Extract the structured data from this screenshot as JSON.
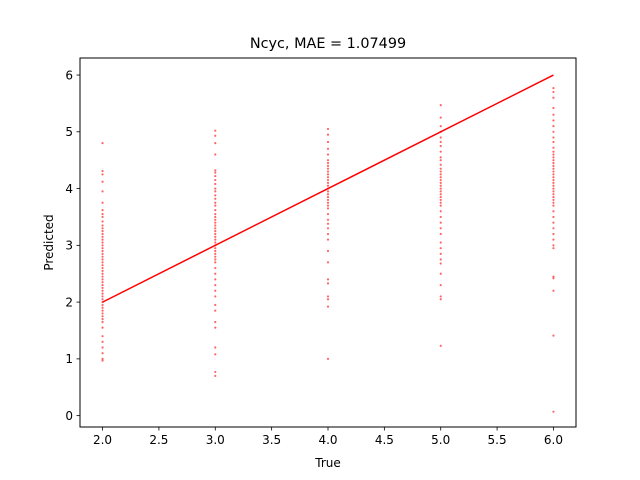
{
  "chart_data": {
    "type": "scatter",
    "title": "Ncyc, MAE = 1.07499",
    "xlabel": "True",
    "ylabel": "Predicted",
    "xlim": [
      1.8,
      6.2
    ],
    "ylim": [
      -0.2,
      6.3
    ],
    "xticks": [
      "2.0",
      "2.5",
      "3.0",
      "3.5",
      "4.0",
      "4.5",
      "5.0",
      "5.5",
      "6.0"
    ],
    "yticks": [
      "0",
      "1",
      "2",
      "3",
      "4",
      "5",
      "6"
    ],
    "grid": false,
    "point_color": "#ff0000",
    "line_color": "#ff0000",
    "reference_line": {
      "x": [
        2,
        6
      ],
      "y": [
        2,
        6
      ]
    },
    "series": [
      {
        "x": 2,
        "y": [
          4.8,
          4.31,
          4.25,
          4.12,
          3.95,
          3.75,
          3.62,
          3.55,
          3.5,
          3.42,
          3.35,
          3.3,
          3.25,
          3.2,
          3.15,
          3.1,
          3.05,
          3.0,
          2.95,
          2.9,
          2.85,
          2.8,
          2.75,
          2.7,
          2.65,
          2.6,
          2.55,
          2.5,
          2.45,
          2.4,
          2.35,
          2.3,
          2.25,
          2.2,
          2.15,
          2.1,
          2.05,
          2.0,
          1.95,
          1.9,
          1.85,
          1.8,
          1.75,
          1.7,
          1.65,
          1.55,
          1.4,
          1.3,
          1.2,
          1.1,
          1.0,
          0.97
        ]
      },
      {
        "x": 3,
        "y": [
          5.02,
          4.93,
          4.8,
          4.6,
          4.32,
          4.28,
          4.22,
          4.15,
          4.08,
          4.0,
          3.95,
          3.88,
          3.82,
          3.75,
          3.7,
          3.62,
          3.55,
          3.5,
          3.45,
          3.4,
          3.35,
          3.3,
          3.25,
          3.2,
          3.15,
          3.1,
          3.05,
          3.0,
          2.95,
          2.9,
          2.85,
          2.8,
          2.75,
          2.7,
          2.6,
          2.5,
          2.4,
          2.3,
          2.2,
          2.1,
          1.95,
          1.85,
          1.65,
          1.55,
          1.2,
          1.08,
          0.77,
          0.7
        ]
      },
      {
        "x": 4,
        "y": [
          5.05,
          4.95,
          4.82,
          4.7,
          4.6,
          4.5,
          4.45,
          4.4,
          4.35,
          4.3,
          4.25,
          4.2,
          4.15,
          4.1,
          4.05,
          4.0,
          3.95,
          3.9,
          3.85,
          3.8,
          3.75,
          3.7,
          3.65,
          3.55,
          3.45,
          3.38,
          3.3,
          3.2,
          3.1,
          2.9,
          2.7,
          2.4,
          2.33,
          2.1,
          2.05,
          1.92,
          1.0
        ]
      },
      {
        "x": 5,
        "y": [
          5.47,
          5.25,
          5.1,
          5.0,
          4.9,
          4.82,
          4.75,
          4.65,
          4.55,
          4.5,
          4.42,
          4.35,
          4.3,
          4.25,
          4.2,
          4.15,
          4.1,
          4.05,
          4.0,
          3.95,
          3.9,
          3.85,
          3.8,
          3.75,
          3.7,
          3.6,
          3.5,
          3.4,
          3.3,
          3.2,
          3.05,
          2.95,
          2.85,
          2.75,
          2.68,
          2.5,
          2.3,
          2.1,
          2.05,
          1.23
        ]
      },
      {
        "x": 6,
        "y": [
          5.77,
          5.7,
          5.6,
          5.42,
          5.3,
          5.2,
          5.1,
          5.0,
          4.9,
          4.82,
          4.72,
          4.65,
          4.6,
          4.55,
          4.5,
          4.45,
          4.4,
          4.35,
          4.3,
          4.25,
          4.2,
          4.15,
          4.1,
          4.05,
          4.0,
          3.95,
          3.9,
          3.85,
          3.8,
          3.75,
          3.7,
          3.6,
          3.5,
          3.4,
          3.3,
          3.2,
          3.1,
          3.0,
          2.95,
          2.45,
          2.42,
          2.2,
          1.41,
          0.07
        ]
      }
    ]
  }
}
